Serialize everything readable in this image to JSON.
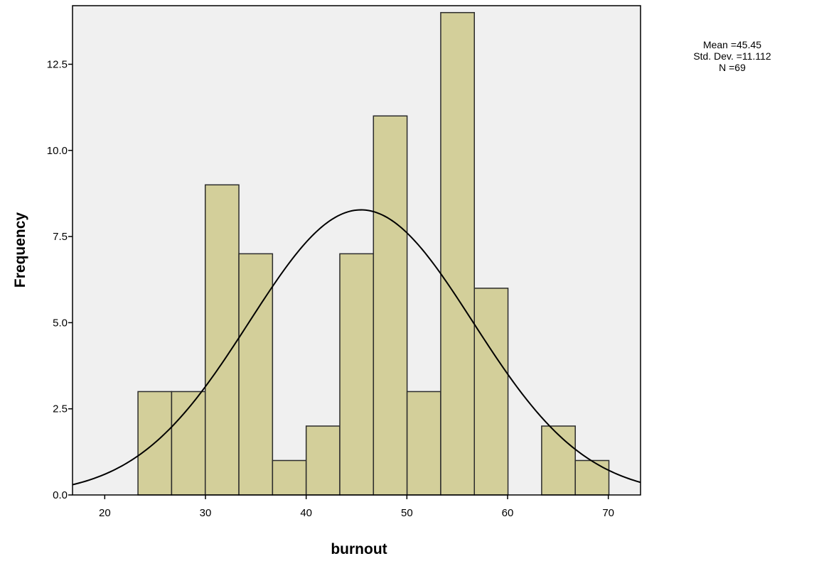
{
  "chart_data": {
    "type": "bar",
    "subtype": "histogram",
    "xlabel": "burnout",
    "ylabel": "Frequency",
    "xlim": [
      16.8,
      73.2
    ],
    "ylim": [
      0,
      14.2
    ],
    "x_ticks": [
      20,
      30,
      40,
      50,
      60,
      70
    ],
    "y_ticks": [
      0.0,
      2.5,
      5.0,
      7.5,
      10.0,
      12.5
    ],
    "y_tick_labels": [
      "0.0",
      "2.5",
      "5.0",
      "7.5",
      "10.0",
      "12.5"
    ],
    "bin_width": 3.34,
    "bins": [
      {
        "start": 23.3,
        "end": 26.64,
        "count": 3
      },
      {
        "start": 26.64,
        "end": 29.98,
        "count": 3
      },
      {
        "start": 29.98,
        "end": 33.32,
        "count": 9
      },
      {
        "start": 33.32,
        "end": 36.66,
        "count": 7
      },
      {
        "start": 36.66,
        "end": 40.0,
        "count": 1
      },
      {
        "start": 40.0,
        "end": 43.34,
        "count": 2
      },
      {
        "start": 43.34,
        "end": 46.68,
        "count": 7
      },
      {
        "start": 46.68,
        "end": 50.02,
        "count": 11
      },
      {
        "start": 50.02,
        "end": 53.36,
        "count": 3
      },
      {
        "start": 53.36,
        "end": 56.7,
        "count": 14
      },
      {
        "start": 56.7,
        "end": 60.04,
        "count": 6
      },
      {
        "start": 60.04,
        "end": 63.38,
        "count": 0
      },
      {
        "start": 63.38,
        "end": 66.72,
        "count": 2
      },
      {
        "start": 66.72,
        "end": 70.06,
        "count": 1
      }
    ],
    "normal_curve": {
      "mean": 45.45,
      "std": 11.112,
      "n": 69
    },
    "stats_labels": [
      "Mean =45.45",
      "Std. Dev. =11.112",
      "N =69"
    ],
    "grid": false,
    "colors": {
      "bar_fill": "#d3cf9a",
      "bar_stroke": "#2b2b2b",
      "plot_bg": "#f0f0f0",
      "curve": "#000000"
    }
  }
}
